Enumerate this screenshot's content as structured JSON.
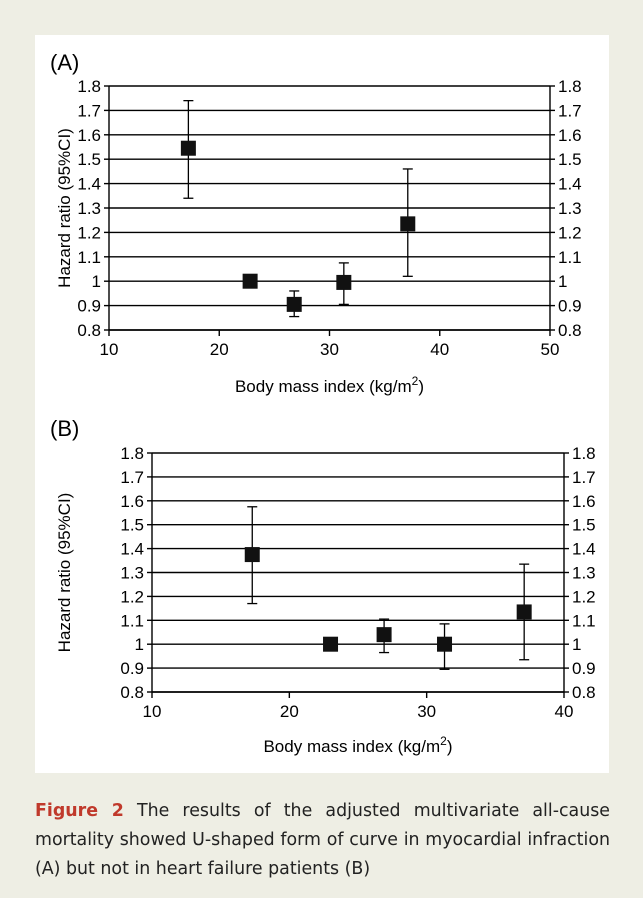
{
  "caption": {
    "label": "Figure 2",
    "text": "The results of the adjusted multivariate all-cause mortality showed U-shaped form of curve in myocardial infraction (A) but not in heart failure patients (B)"
  },
  "chart_data": [
    {
      "type": "scatter",
      "panel_label": "(A)",
      "xlabel": "Body mass index (kg/m²)",
      "ylabel": "Hazard ratio (95%CI)",
      "xlim": [
        10,
        50
      ],
      "ylim": [
        0.8,
        1.8
      ],
      "x_ticks": [
        "10",
        "20",
        "30",
        "40",
        "50"
      ],
      "y_ticks": [
        "0.8",
        "0.9",
        "1",
        "1.1",
        "1.2",
        "1.3",
        "1.4",
        "1.5",
        "1.6",
        "1.7",
        "1.8"
      ],
      "secondary_y_axis": true,
      "grid": "horizontal",
      "points": [
        {
          "x": 17.2,
          "y": 1.545,
          "lower": 1.34,
          "upper": 1.74
        },
        {
          "x": 22.8,
          "y": 1.0,
          "lower": 1.0,
          "upper": 1.0
        },
        {
          "x": 26.8,
          "y": 0.905,
          "lower": 0.855,
          "upper": 0.96
        },
        {
          "x": 31.3,
          "y": 0.995,
          "lower": 0.905,
          "upper": 1.075
        },
        {
          "x": 37.1,
          "y": 1.235,
          "lower": 1.02,
          "upper": 1.46
        }
      ]
    },
    {
      "type": "scatter",
      "panel_label": "(B)",
      "xlabel": "Body mass index (kg/m²)",
      "ylabel": "Hazard ratio (95%CI)",
      "xlim": [
        10,
        40
      ],
      "ylim": [
        0.8,
        1.8
      ],
      "x_ticks": [
        "10",
        "20",
        "30",
        "40"
      ],
      "y_ticks": [
        "0.8",
        "0.9",
        "1",
        "1.1",
        "1.2",
        "1.3",
        "1.4",
        "1.5",
        "1.6",
        "1.7",
        "1.8"
      ],
      "secondary_y_axis": true,
      "grid": "horizontal",
      "points": [
        {
          "x": 17.3,
          "y": 1.375,
          "lower": 1.17,
          "upper": 1.575
        },
        {
          "x": 23.0,
          "y": 1.0,
          "lower": 1.0,
          "upper": 1.0
        },
        {
          "x": 26.9,
          "y": 1.04,
          "lower": 0.965,
          "upper": 1.105
        },
        {
          "x": 31.3,
          "y": 1.0,
          "lower": 0.895,
          "upper": 1.085
        },
        {
          "x": 37.1,
          "y": 1.135,
          "lower": 0.935,
          "upper": 1.335
        }
      ]
    }
  ]
}
